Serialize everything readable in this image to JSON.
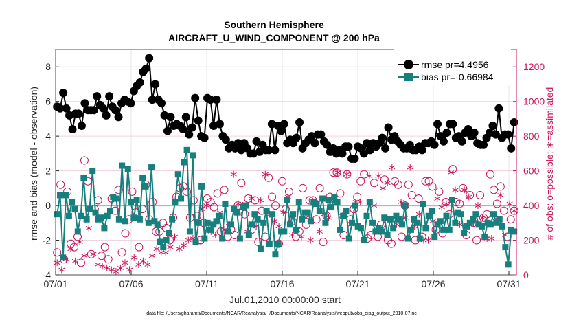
{
  "chart_data": {
    "type": "line",
    "title": "Southern Hemisphere",
    "subtitle": "AIRCRAFT_U_WIND_COMPONENT @ 200 hPa",
    "xlabel": "Jul.01,2010 00:00:00 start",
    "ylabel": "rmse and bias (model - observation)",
    "y2label": "# of obs: o=possible; ∗=assimilated",
    "footnote": "data file: /Users/gharamti/Documents/NCAR/Reanalysis/~/Documents/NCAR/Reanalysis/webpub/obs_diag_output_2010-07.nc",
    "xlim": [
      1,
      31.5
    ],
    "ylim": [
      -4,
      9
    ],
    "y2lim": [
      0,
      1300
    ],
    "xticks": [
      1,
      6,
      11,
      16,
      21,
      26,
      31
    ],
    "xtick_labels": [
      "07/01",
      "07/06",
      "07/11",
      "07/16",
      "07/21",
      "07/26",
      "07/31"
    ],
    "yticks": [
      -4,
      -2,
      0,
      2,
      4,
      6,
      8
    ],
    "ytick_labels": [
      "-4",
      "-2",
      "0",
      "2",
      "4",
      "6",
      "8"
    ],
    "y2ticks": [
      0,
      200,
      400,
      600,
      800,
      1000,
      1200
    ],
    "y2tick_labels": [
      "0",
      "200",
      "400",
      "600",
      "800",
      "1000",
      "1200"
    ],
    "grid": true,
    "legend_position": "top-right",
    "colors": {
      "rmse": "#000000",
      "bias": "#17807e",
      "counts": "#c8155a",
      "zero_line": "#b4b4b4",
      "grid": "#dcdcdc"
    },
    "series": [
      {
        "name": "rmse pr=4.4956",
        "values": [
          5.7,
          5.6,
          6.5,
          5.6,
          5.2,
          4.4,
          5.3,
          5.3,
          4.6,
          5.9,
          5.5,
          5.5,
          5.5,
          6.3,
          5.8,
          5.6,
          5.2,
          6.3,
          5.7,
          5.5,
          5.1,
          5.9,
          6.1,
          6.0,
          5.9,
          6.6,
          6.9,
          7.1,
          7.7,
          7.9,
          8.5,
          6.1,
          7.0,
          6.1,
          5.9,
          5.2,
          4.3,
          5.1,
          4.6,
          4.7,
          4.6,
          4.4,
          5.1,
          4.1,
          4.5,
          6.2,
          4.9,
          4.0,
          3.9,
          6.2,
          6.1,
          4.6,
          6.1,
          4.7,
          4.0,
          3.8,
          3.3,
          3.5,
          3.3,
          3.6,
          3.2,
          3.6,
          3.3,
          3.0,
          3.0,
          3.7,
          3.1,
          3.5,
          3.2,
          3.2,
          4.7,
          3.2,
          4.6,
          4.3,
          4.7,
          3.6,
          3.8,
          3.6,
          3.9,
          4.8,
          3.3,
          3.6,
          3.8,
          4.0,
          3.6,
          4.1,
          4.1,
          3.7,
          3.5,
          3.1,
          3.3,
          3.0,
          3.2,
          3.0,
          3.4,
          3.4,
          2.7,
          2.7,
          3.4,
          3.3,
          3.0,
          3.6,
          3.2,
          3.6,
          3.4,
          3.6,
          3.9,
          3.3,
          4.5,
          3.8,
          4.0,
          3.7,
          3.5,
          3.3,
          3.3,
          3.5,
          3.2,
          3.2,
          3.4,
          3.2,
          3.6,
          3.6,
          3.7,
          3.5,
          4.7,
          4.0,
          3.7,
          4.2,
          4.7,
          4.7,
          3.9,
          4.0,
          3.7,
          4.2,
          4.4,
          4.0,
          4.2,
          3.6,
          3.5,
          3.5,
          3.9,
          4.2,
          4.6,
          4.1,
          5.6,
          3.9,
          4.1,
          4.1,
          3.3,
          4.8
        ],
        "color": "#000000"
      },
      {
        "name": "bias pr=-0.66984",
        "values": [
          -0.5,
          0.6,
          -3.0,
          0.6,
          -0.6,
          0.2,
          -0.2,
          -1.5,
          -0.6,
          1.6,
          -0.8,
          -0.2,
          2.0,
          -0.4,
          -0.8,
          -0.7,
          -1.3,
          -0.6,
          -0.3,
          0.5,
          0.4,
          -0.8,
          2.3,
          -0.9,
          2.1,
          0.2,
          -0.7,
          0.3,
          -0.8,
          1.6,
          1.1,
          -1.0,
          2.2,
          -0.9,
          -1.1,
          -2.1,
          -2.4,
          -2.0,
          -1.6,
          -0.8,
          0.2,
          1.8,
          0.4,
          2.5,
          3.2,
          -1.5,
          2.9,
          -2.1,
          -1.0,
          1.1,
          -1.9,
          -1.0,
          -1.4,
          -1.1,
          -0.9,
          -0.6,
          -1.9,
          0.1,
          -1.5,
          -1.1,
          -0.2,
          -0.4,
          -1.9,
          -0.1,
          0.0,
          -1.7,
          -1.1,
          -0.5,
          -0.8,
          -2.5,
          -1.0,
          -0.3,
          -2.2,
          -0.5,
          -2.8,
          -2.2,
          -1.5,
          -1.5,
          0.3,
          -1.1,
          -0.5,
          -1.4,
          0.2,
          -0.8,
          -0.4,
          -0.4,
          -0.9,
          0.2,
          0.1,
          -0.3,
          0.4,
          -1.0,
          0.3,
          -0.1,
          0.5,
          0.2,
          -1.4,
          -0.6,
          -0.3,
          -1.9,
          -1.0,
          0.0,
          -1.2,
          -1.3,
          -2.0,
          -0.6,
          0.2,
          -1.0,
          -1.5,
          -1.3,
          -1.5,
          -0.7,
          -1.7,
          -0.8,
          -1.3,
          -0.6,
          -0.8,
          -1.1,
          0.0,
          -1.9,
          -1.4,
          -0.8,
          -1.0,
          -1.9,
          0.1,
          -1.3,
          -0.6,
          -0.3,
          -1.8,
          -1.1,
          -0.9,
          -1.4,
          -0.6,
          -1.4,
          0.3,
          -1.0,
          -0.4,
          -0.5,
          -1.6,
          -1.2,
          -1.0,
          -0.8,
          -0.5,
          -1.1,
          -1.2,
          -1.8,
          -1.0,
          -1.1,
          -0.5,
          -1.0,
          -0.8,
          -1.2,
          -2.4,
          -3.4,
          -1.4,
          -1.5
        ],
        "color": "#17807e"
      },
      {
        "name": "possible",
        "values": [
          130,
          520,
          90,
          480,
          180,
          160,
          220,
          70,
          660,
          540,
          120,
          380,
          430,
          110,
          160,
          90,
          440,
          370,
          490,
          130,
          240,
          320,
          480,
          360,
          160,
          380,
          520,
          320,
          420,
          250,
          250,
          300,
          270,
          200,
          330,
          450,
          500,
          510,
          480,
          330,
          430,
          340,
          200,
          300,
          440,
          420,
          390,
          470,
          250,
          490,
          220,
          260,
          230,
          400,
          530,
          350,
          440,
          260,
          430,
          190,
          370,
          220,
          560,
          450,
          400,
          180,
          540,
          380,
          480,
          310,
          220,
          250,
          500,
          290,
          430,
          430,
          320,
          500,
          190,
          340,
          450,
          590,
          590,
          470,
          230,
          580,
          320,
          380,
          450,
          540,
          580,
          210,
          230,
          530,
          220,
          290,
          550,
          200,
          180,
          540,
          520,
          220,
          400,
          520,
          460,
          200,
          440,
          220,
          540,
          540,
          510,
          260,
          480,
          240,
          420,
          350,
          610,
          420,
          410,
          500,
          230,
          460,
          300,
          200,
          460,
          330,
          350,
          580,
          490,
          410,
          510,
          370,
          220,
          320,
          370
        ],
        "color": "#c8155a"
      },
      {
        "name": "assimilated",
        "values": [
          70,
          30,
          90,
          150,
          80,
          190,
          110,
          270,
          120,
          60,
          50,
          40,
          30,
          20,
          40,
          70,
          30,
          100,
          60,
          80,
          60,
          110,
          150,
          130,
          130,
          160,
          220,
          150,
          170,
          200,
          210,
          190,
          380,
          400,
          250,
          230,
          360,
          260,
          300,
          580,
          410,
          400,
          250,
          440,
          280,
          430,
          580,
          350,
          310,
          280,
          360,
          450,
          230,
          260,
          220,
          330,
          200,
          420,
          250,
          350,
          330,
          420,
          590,
          340,
          580,
          290,
          420,
          420,
          220,
          570,
          400,
          570,
          500,
          530,
          620,
          290,
          420,
          330,
          620,
          280,
          350,
          200,
          200,
          310,
          440,
          390,
          410,
          590,
          490,
          290,
          490,
          450,
          300,
          400,
          330,
          210,
          210,
          310,
          460,
          230,
          410,
          370
        ],
        "color": "#c8155a"
      }
    ]
  }
}
